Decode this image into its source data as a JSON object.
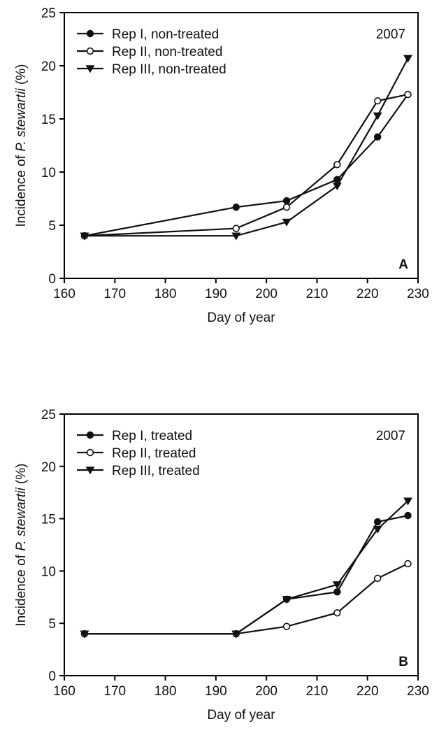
{
  "chart_data": [
    {
      "panel": "A",
      "type": "line",
      "year": "2007",
      "xlabel": "Day of year",
      "ylabel_prefix": "Incidence of ",
      "ylabel_italic": "P. stewartii",
      "ylabel_suffix": " (%)",
      "xlim": [
        160,
        230
      ],
      "ylim": [
        0,
        25
      ],
      "xticks": [
        160,
        170,
        180,
        190,
        200,
        210,
        220,
        230
      ],
      "yticks": [
        0,
        5,
        10,
        15,
        20,
        25
      ],
      "legend_position": "top-left",
      "series": [
        {
          "name": "Rep I, non-treated",
          "marker": "filled-circle",
          "x": [
            164,
            194,
            204,
            214,
            222,
            228
          ],
          "y": [
            4.0,
            6.7,
            7.3,
            9.3,
            13.3,
            17.3
          ]
        },
        {
          "name": "Rep II, non-treated",
          "marker": "open-circle",
          "x": [
            164,
            194,
            204,
            214,
            222,
            228
          ],
          "y": [
            4.0,
            4.7,
            6.7,
            10.7,
            16.7,
            17.3
          ]
        },
        {
          "name": "Rep III, non-treated",
          "marker": "filled-triangle-down",
          "x": [
            164,
            194,
            204,
            214,
            222,
            228
          ],
          "y": [
            4.0,
            4.0,
            5.3,
            8.7,
            15.3,
            20.7
          ]
        }
      ]
    },
    {
      "panel": "B",
      "type": "line",
      "year": "2007",
      "xlabel": "Day of year",
      "ylabel_prefix": "Incidence of ",
      "ylabel_italic": "P. stewartii",
      "ylabel_suffix": " (%)",
      "xlim": [
        160,
        230
      ],
      "ylim": [
        0,
        25
      ],
      "xticks": [
        160,
        170,
        180,
        190,
        200,
        210,
        220,
        230
      ],
      "yticks": [
        0,
        5,
        10,
        15,
        20,
        25
      ],
      "legend_position": "top-left",
      "series": [
        {
          "name": "Rep I, treated",
          "marker": "filled-circle",
          "x": [
            164,
            194,
            204,
            214,
            222,
            228
          ],
          "y": [
            4.0,
            4.0,
            7.3,
            8.0,
            14.7,
            15.3
          ]
        },
        {
          "name": "Rep II, treated",
          "marker": "open-circle",
          "x": [
            164,
            194,
            204,
            214,
            222,
            228
          ],
          "y": [
            4.0,
            4.0,
            4.7,
            6.0,
            9.3,
            10.7
          ]
        },
        {
          "name": "Rep III, treated",
          "marker": "filled-triangle-down",
          "x": [
            164,
            194,
            204,
            214,
            222,
            228
          ],
          "y": [
            4.0,
            4.0,
            7.3,
            8.7,
            14.0,
            16.7
          ]
        }
      ]
    }
  ]
}
